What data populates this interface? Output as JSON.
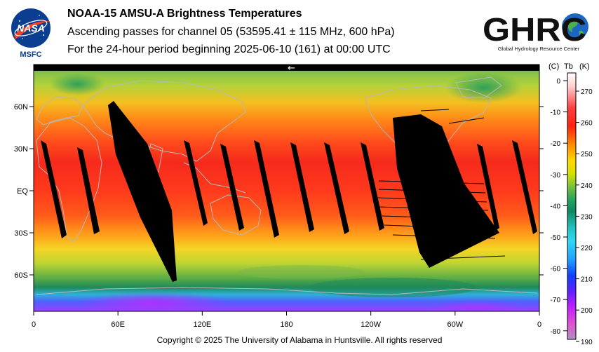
{
  "header": {
    "title": "NOAA-15 AMSU-A Brightness Temperatures",
    "subtitle": "Ascending passes for channel 05 (53595.41 ± 115 MHz, 600 hPa)",
    "period": "For the 24-hour period beginning 2025-06-10 (161) at 00:00 UTC"
  },
  "logos": {
    "nasa_text": "NASA",
    "msfc_text": "MSFC",
    "ghrc_text": "GHRC",
    "ghrc_sub": "Global Hydrology Resource Center"
  },
  "map": {
    "lon_labels": [
      "0",
      "60E",
      "120E",
      "180",
      "120W",
      "60W",
      "0"
    ],
    "lat_labels": [
      "60N",
      "30N",
      "EQ",
      "30S",
      "60S"
    ],
    "arrow": "←"
  },
  "colorbar": {
    "unit_c": "(C)",
    "unit_tb": "Tb",
    "unit_k": "(K)",
    "celsius_ticks": [
      "0",
      "-10",
      "-20",
      "-30",
      "-40",
      "-50",
      "-60",
      "-70",
      "-80"
    ],
    "kelvin_ticks": [
      "270",
      "260",
      "250",
      "240",
      "230",
      "220",
      "210",
      "200",
      "190"
    ]
  },
  "footer": {
    "copyright": "Copyright © 2025 The University of Alabama in Huntsville.  All rights reserved"
  },
  "colors": {
    "land_outline": "#b8b8b8",
    "gap": "#000000"
  }
}
